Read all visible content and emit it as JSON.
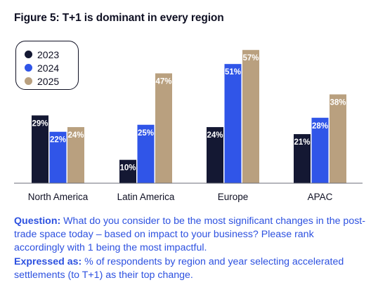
{
  "figure": {
    "title": "Figure 5: T+1 is dominant in every region"
  },
  "colors": {
    "2023": "#141833",
    "2024": "#3055e8",
    "2025": "#b9a07f",
    "text": "#0f1023",
    "caption": "#2d51e0"
  },
  "legend": [
    {
      "label": "2023",
      "color": "#141833"
    },
    {
      "label": "2024",
      "color": "#3055e8"
    },
    {
      "label": "2025",
      "color": "#b9a07f"
    }
  ],
  "chart_data": {
    "type": "bar",
    "title": "Figure 5: T+1 is dominant in every region",
    "categories": [
      "North America",
      "Latin America",
      "Europe",
      "APAC"
    ],
    "series": [
      {
        "name": "2023",
        "values": [
          29,
          10,
          24,
          21
        ]
      },
      {
        "name": "2024",
        "values": [
          22,
          25,
          51,
          28
        ]
      },
      {
        "name": "2025",
        "values": [
          24,
          47,
          57,
          38
        ]
      }
    ],
    "value_suffix": "%",
    "ylim": [
      0,
      60
    ],
    "grid": false,
    "legend_position": "top-left"
  },
  "caption": {
    "question_label": "Question:",
    "question_text": " What do you consider to be the most significant changes in the post-trade space today – based on impact to your business? Please rank accordingly with 1 being the most impactful.",
    "expressed_label": "Expressed as:",
    "expressed_text": " % of respondents by region and year selecting accelerated settlements (to T+1) as their top change."
  }
}
